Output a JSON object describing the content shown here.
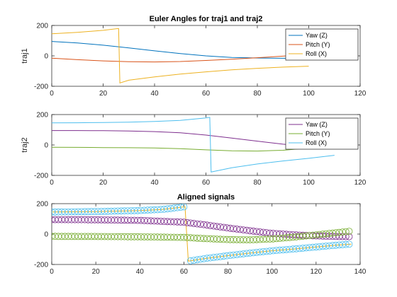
{
  "chart_data": [
    {
      "type": "line",
      "title": "Euler Angles for traj1 and traj2",
      "xlabel": "",
      "ylabel": "traj1",
      "xlim": [
        0,
        120
      ],
      "ylim": [
        -200,
        200
      ],
      "xticks": [
        0,
        20,
        40,
        60,
        80,
        100,
        120
      ],
      "yticks": [
        -200,
        0,
        200
      ],
      "grid": false,
      "legend_position": "top-right",
      "series": [
        {
          "name": "Yaw (Z)",
          "color": "#0072BD",
          "x": [
            0,
            10,
            20,
            30,
            40,
            50,
            60,
            70,
            80,
            90,
            100
          ],
          "y": [
            95,
            85,
            70,
            52,
            33,
            15,
            0,
            -10,
            -14,
            -16,
            -17
          ]
        },
        {
          "name": "Pitch (Y)",
          "color": "#D95319",
          "x": [
            0,
            10,
            20,
            30,
            40,
            50,
            60,
            70,
            80,
            90,
            100
          ],
          "y": [
            -15,
            -25,
            -33,
            -38,
            -40,
            -37,
            -30,
            -22,
            -12,
            -2,
            10
          ]
        },
        {
          "name": "Roll (X)",
          "color": "#EDB120",
          "x": [
            0,
            10,
            20,
            26,
            26.5,
            30,
            40,
            50,
            60,
            70,
            80,
            90,
            100
          ],
          "y": [
            145,
            155,
            168,
            180,
            -178,
            -160,
            -138,
            -120,
            -105,
            -92,
            -82,
            -74,
            -68
          ]
        }
      ]
    },
    {
      "type": "line",
      "title": "",
      "xlabel": "",
      "ylabel": "traj2",
      "xlim": [
        0,
        120
      ],
      "ylim": [
        -200,
        200
      ],
      "xticks": [
        0,
        20,
        40,
        60,
        80,
        100,
        120
      ],
      "yticks": [
        -200,
        0,
        200
      ],
      "grid": false,
      "legend_position": "top-right",
      "series": [
        {
          "name": "Yaw (Z)",
          "color": "#7E2F8E",
          "x": [
            0,
            10,
            20,
            30,
            40,
            50,
            60,
            70,
            80,
            90,
            100,
            110
          ],
          "y": [
            95,
            95,
            94,
            92,
            88,
            80,
            65,
            45,
            25,
            5,
            -10,
            -17
          ]
        },
        {
          "name": "Pitch (Y)",
          "color": "#77AC30",
          "x": [
            0,
            10,
            20,
            30,
            40,
            50,
            60,
            70,
            80,
            90,
            100,
            110
          ],
          "y": [
            -15,
            -16,
            -17,
            -18,
            -20,
            -24,
            -32,
            -38,
            -40,
            -35,
            -20,
            10
          ]
        },
        {
          "name": "Roll (X)",
          "color": "#4DBEEE",
          "x": [
            0,
            10,
            20,
            30,
            40,
            50,
            60,
            61.5,
            62,
            70,
            80,
            90,
            100,
            110
          ],
          "y": [
            145,
            146,
            148,
            150,
            155,
            162,
            178,
            182,
            -178,
            -150,
            -125,
            -105,
            -88,
            -68
          ]
        }
      ]
    },
    {
      "type": "scatter",
      "title": "Aligned signals",
      "xlabel": "",
      "ylabel": "",
      "xlim": [
        0,
        140
      ],
      "ylim": [
        -200,
        200
      ],
      "xticks": [
        0,
        20,
        40,
        60,
        80,
        100,
        120,
        140
      ],
      "yticks": [
        -200,
        0,
        200
      ],
      "grid": false,
      "legend_position": "none",
      "connector_color": "#EDB120",
      "series": [
        {
          "color": "#7E2F8E",
          "marker": "circle",
          "x": [
            0,
            20,
            40,
            60,
            70,
            80,
            90,
            100,
            110,
            120,
            130,
            136
          ],
          "y": [
            95,
            94,
            90,
            78,
            60,
            40,
            22,
            5,
            -5,
            -12,
            -16,
            -17
          ]
        },
        {
          "color": "#77AC30",
          "marker": "circle",
          "x": [
            0,
            20,
            40,
            60,
            70,
            80,
            90,
            100,
            110,
            120,
            130,
            136
          ],
          "y": [
            -15,
            -16,
            -18,
            -22,
            -30,
            -36,
            -38,
            -32,
            -20,
            -5,
            10,
            20
          ]
        },
        {
          "color": "#4DBEEE",
          "marker": "circle",
          "x": [
            0,
            20,
            40,
            50,
            58,
            60.5,
            62,
            70,
            80,
            90,
            100,
            110,
            120,
            130,
            136
          ],
          "y": [
            145,
            148,
            155,
            162,
            175,
            180,
            -178,
            -160,
            -142,
            -125,
            -110,
            -98,
            -85,
            -72,
            -66
          ]
        }
      ]
    }
  ]
}
